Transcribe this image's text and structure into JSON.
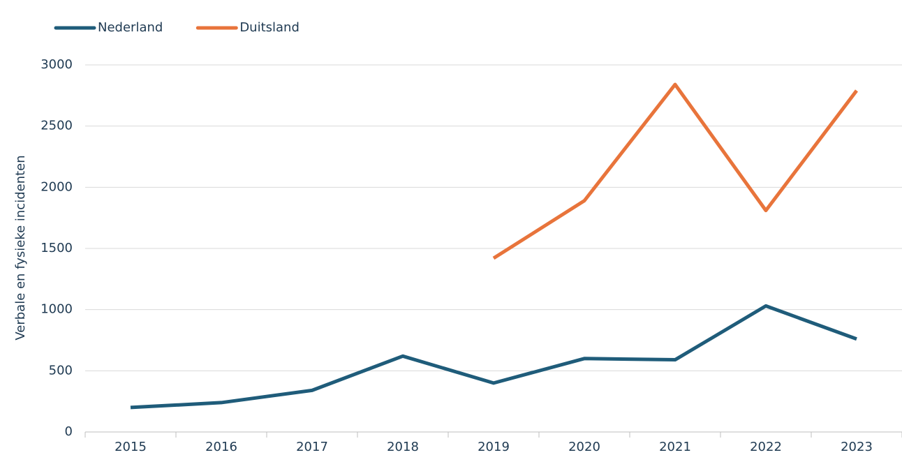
{
  "chart_data": {
    "type": "line",
    "y_axis_label": "Verbale en fysieke incidenten",
    "categories": [
      "2015",
      "2016",
      "2017",
      "2018",
      "2019",
      "2020",
      "2021",
      "2022",
      "2023"
    ],
    "series": [
      {
        "name": "Nederland",
        "color": "#1f5c7a",
        "values": [
          200,
          240,
          340,
          620,
          400,
          600,
          590,
          1030,
          760
        ]
      },
      {
        "name": "Duitsland",
        "color": "#e8743b",
        "values": [
          null,
          null,
          null,
          null,
          1420,
          1890,
          2840,
          1810,
          2790
        ]
      }
    ],
    "ylim": [
      0,
      3000
    ],
    "yticks": [
      0,
      500,
      1000,
      1500,
      2000,
      2500,
      3000
    ],
    "grid": true,
    "legend": "top-left"
  }
}
